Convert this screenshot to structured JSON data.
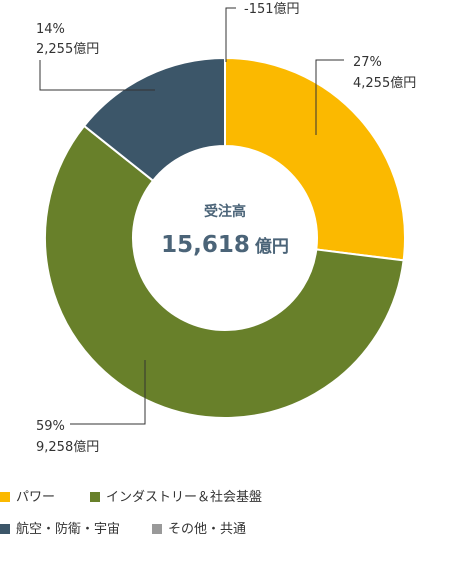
{
  "chart_data": {
    "type": "pie",
    "center": {
      "title": "受注高",
      "value": "15,618",
      "unit": "億円"
    },
    "slices": [
      {
        "name": "パワー",
        "value": 4255,
        "percent_label": "27%",
        "value_label": "4,255億円",
        "color": "#fbb900"
      },
      {
        "name": "インダストリー＆社会基盤",
        "value": 9258,
        "percent_label": "59%",
        "value_label": "9,258億円",
        "color": "#68802a"
      },
      {
        "name": "航空・防衛・宇宙",
        "value": 2255,
        "percent_label": "14%",
        "value_label": "2,255億円",
        "color": "#3c5669"
      },
      {
        "name": "その他・共通",
        "value": -151,
        "percent_label": "",
        "value_label": "-151億円",
        "color": "#999999"
      }
    ]
  },
  "legend": [
    {
      "label": "パワー",
      "color": "#fbb900"
    },
    {
      "label": "インダストリー＆社会基盤",
      "color": "#68802a"
    },
    {
      "label": "航空・防衛・宇宙",
      "color": "#3c5669"
    },
    {
      "label": "その他・共通",
      "color": "#999999"
    }
  ]
}
